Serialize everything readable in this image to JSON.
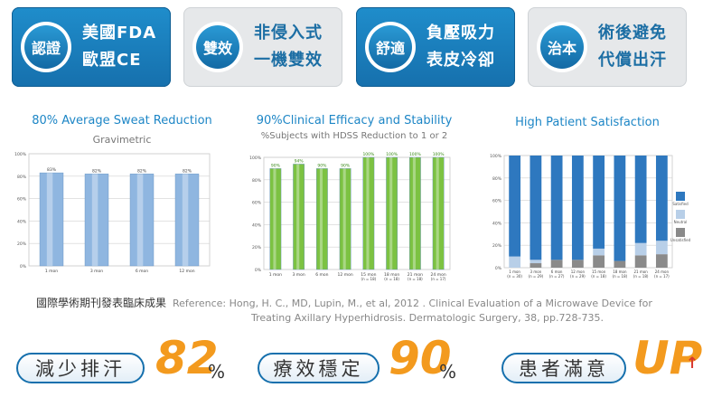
{
  "badges": [
    {
      "icon": "認證",
      "line1": "美國FDA",
      "line2": "歐盟CE"
    },
    {
      "icon": "雙效",
      "line1": "非侵入式",
      "line2": "一機雙效"
    },
    {
      "icon": "舒適",
      "line1": "負壓吸力",
      "line2": "表皮冷卻"
    },
    {
      "icon": "治本",
      "line1": "術後避免",
      "line2": "代償出汗"
    }
  ],
  "chart_data": [
    {
      "type": "bar",
      "title": "80% Average Sweat Reduction",
      "subtitle": "Gravimetric",
      "categories": [
        "1 mon",
        "3 mon",
        "6 mon",
        "12 mon"
      ],
      "values": [
        83,
        82,
        82,
        82
      ],
      "value_labels": [
        "83%",
        "82%",
        "82%",
        "82%"
      ],
      "ylim": [
        0,
        100
      ],
      "yticks": [
        "0%",
        "20%",
        "40%",
        "60%",
        "80%",
        "100%"
      ],
      "color": "#8fb6e0"
    },
    {
      "type": "bar",
      "title": "90%Clinical Efficacy and Stability",
      "subtitle": "%Subjects with HDSS Reduction to 1 or 2",
      "categories": [
        "1 mon",
        "3 mon",
        "6 mon",
        "12 mon",
        "15 mon",
        "18 mon",
        "21 mon",
        "24 mon"
      ],
      "sublabels": [
        "",
        "",
        "",
        "",
        "(n = 18)",
        "(n = 18)",
        "(n = 18)",
        "(n = 17)"
      ],
      "values": [
        90,
        94,
        90,
        90,
        100,
        100,
        100,
        100
      ],
      "value_labels": [
        "90%",
        "94%",
        "90%",
        "90%",
        "100%",
        "100%",
        "100%",
        "100%"
      ],
      "ylim": [
        0,
        100
      ],
      "yticks": [
        "0%",
        "20%",
        "40%",
        "60%",
        "80%",
        "100%"
      ],
      "color": "#7cc242"
    },
    {
      "type": "bar",
      "title": "High Patient Satisfaction",
      "categories": [
        "1 mon",
        "3 mon",
        "6 mon",
        "12 mon",
        "15 mon",
        "18 mon",
        "21 mon",
        "24 mon"
      ],
      "sublabels": [
        "(n = 30)",
        "(n = 29)",
        "(n = 27)",
        "(n = 29)",
        "(n = 18)",
        "(n = 18)",
        "(n = 18)",
        "(n = 17)"
      ],
      "series": [
        {
          "name": "Satisfied",
          "values": [
            90,
            93,
            93,
            93,
            83,
            94,
            78,
            76
          ],
          "color": "#2e78bf"
        },
        {
          "name": "Neutral",
          "values": [
            10,
            3,
            0,
            0,
            6,
            0,
            11,
            12
          ],
          "color": "#b8cfe8"
        },
        {
          "name": "Unsatisfied",
          "values": [
            0,
            4,
            7,
            7,
            11,
            6,
            11,
            12
          ],
          "color": "#8a8a8a"
        }
      ],
      "ylim": [
        0,
        100
      ],
      "yticks": [
        "0%",
        "20%",
        "40%",
        "60%",
        "80%",
        "100%"
      ],
      "legend": "right"
    }
  ],
  "reference": {
    "zh": "國際學術期刊發表臨床成果",
    "en1": "Reference: Hong, H. C., MD, Lupin, M., et al, 2012 . Clinical Evaluation of a Microwave Device for",
    "en2": "Treating Axillary Hyperhidrosis. Dermatologic Surgery, 38, pp.728-735."
  },
  "stats": [
    {
      "label": "減少排汗",
      "value": "82",
      "unit": "%"
    },
    {
      "label": "療效穩定",
      "value": "90",
      "unit": "%"
    },
    {
      "label": "患者滿意",
      "value": "UP",
      "unit": "↑"
    }
  ]
}
